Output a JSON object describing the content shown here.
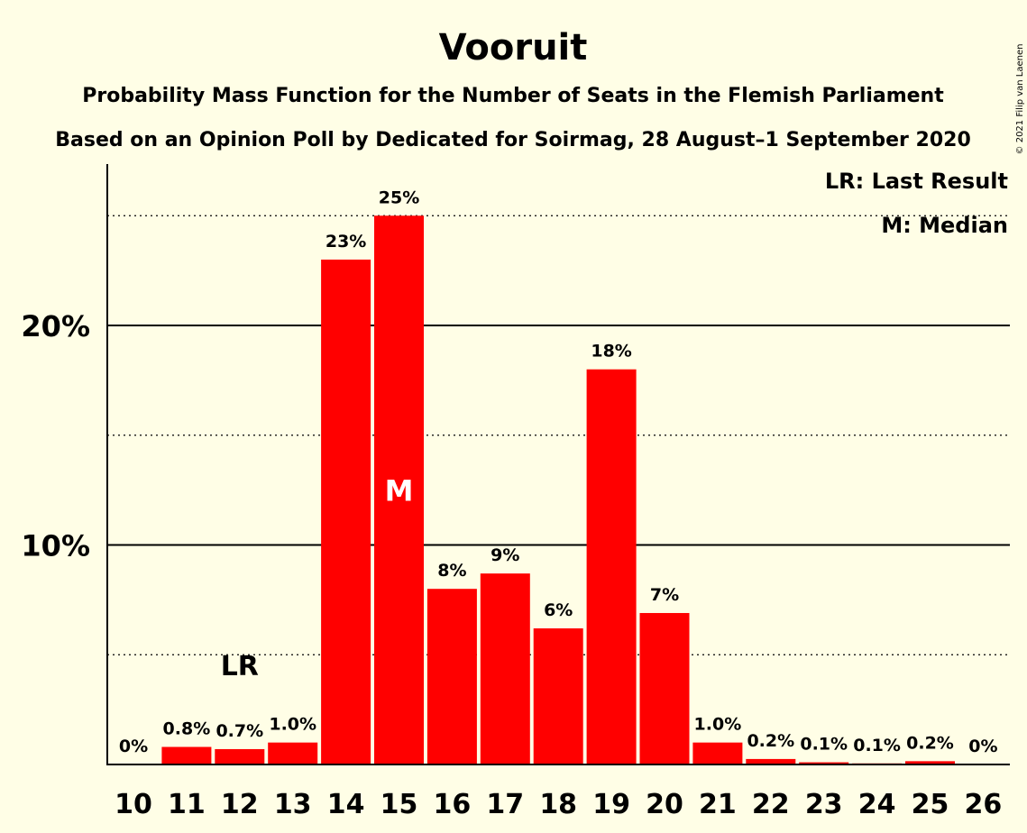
{
  "chart_data": {
    "type": "bar",
    "title": "Vooruit",
    "subtitle_1": "Probability Mass Function for the Number of Seats in the Flemish Parliament",
    "subtitle_2": "Based on an Opinion Poll by Dedicated for Soirmag, 28 August–1 September 2020",
    "copyright": "© 2021 Filip van Laenen",
    "categories": [
      "10",
      "11",
      "12",
      "13",
      "14",
      "15",
      "16",
      "17",
      "18",
      "19",
      "20",
      "21",
      "22",
      "23",
      "24",
      "25",
      "26"
    ],
    "values": [
      0,
      0.8,
      0.7,
      1.0,
      23,
      25,
      8,
      8.7,
      6.2,
      18,
      6.9,
      1.0,
      0.25,
      0.1,
      0.05,
      0.15,
      0
    ],
    "data_labels": [
      "0%",
      "0.8%",
      "0.7%",
      "1.0%",
      "23%",
      "25%",
      "8%",
      "9%",
      "6%",
      "18%",
      "7%",
      "1.0%",
      "0.2%",
      "0.1%",
      "0.1%",
      "0.2%",
      "0%"
    ],
    "y_ticks": [
      {
        "value": 10,
        "label": "10%"
      },
      {
        "value": 20,
        "label": "20%"
      }
    ],
    "y_dotted_gridlines": [
      5,
      15,
      25
    ],
    "ylim": [
      0,
      27.3
    ],
    "last_result": {
      "category": "12",
      "marker": "LR"
    },
    "median": {
      "category": "15",
      "marker": "M"
    },
    "legend": [
      "LR: Last Result",
      "M: Median"
    ],
    "legend_position": "top-right",
    "bar_color": "#FF0000",
    "background_color": "#FFFEE6",
    "axis_color": "#000000"
  }
}
